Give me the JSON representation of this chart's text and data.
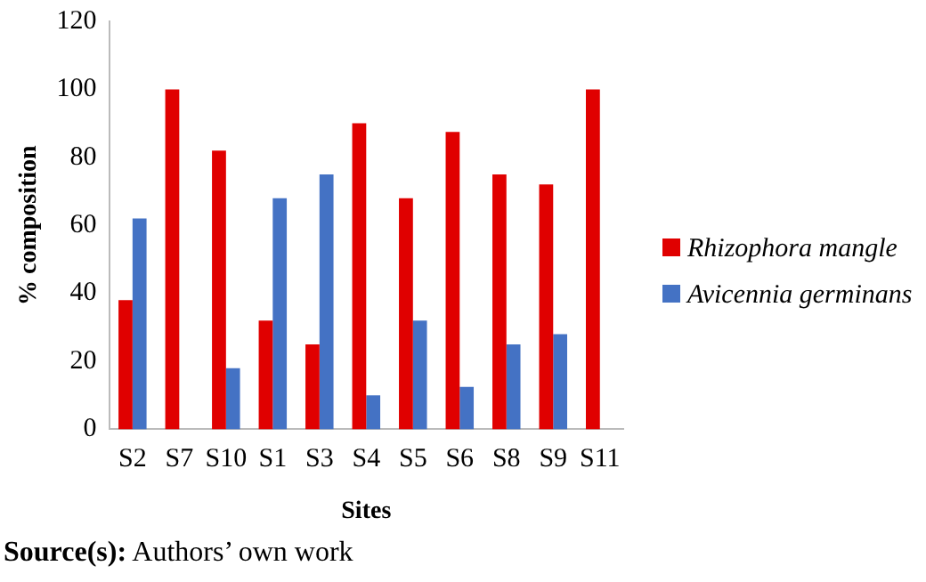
{
  "chart_data": {
    "type": "bar",
    "xlabel": "Sites",
    "ylabel": "% composition",
    "categories": [
      "S2",
      "S7",
      "S10",
      "S1",
      "S3",
      "S4",
      "S5",
      "S6",
      "S8",
      "S9",
      "S11"
    ],
    "series": [
      {
        "name": "Rhizophora mangle",
        "color": "#e00000",
        "values": [
          38,
          100,
          82,
          32,
          25,
          90,
          68,
          87.5,
          75,
          72,
          100
        ]
      },
      {
        "name": "Avicennia germinans",
        "color": "#4472c4",
        "values": [
          62,
          0,
          18,
          68,
          75,
          10,
          32,
          12.5,
          25,
          28,
          0
        ]
      }
    ],
    "ylim": [
      0,
      120
    ],
    "yticks": [
      0,
      20,
      40,
      60,
      80,
      100,
      120
    ],
    "grid": false,
    "legend": "right",
    "annotations": [
      "Source(s): Authors’ own work"
    ]
  }
}
